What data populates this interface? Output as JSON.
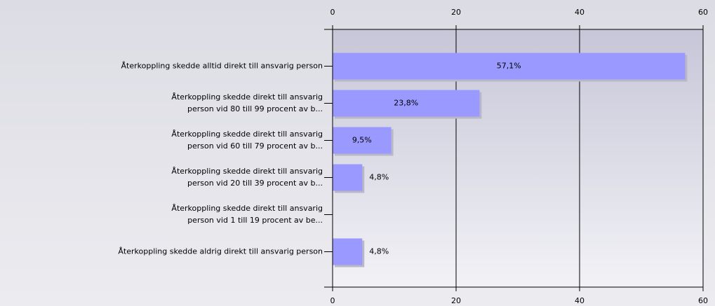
{
  "chart_data": {
    "type": "bar",
    "orientation": "horizontal",
    "categories": [
      [
        "Återkoppling skedde alltid direkt till ansvarig person"
      ],
      [
        "Återkoppling skedde direkt till ansvarig",
        "person vid 80 till 99 procent av b..."
      ],
      [
        "Återkoppling skedde direkt till ansvarig",
        "person vid 60 till 79 procent av b..."
      ],
      [
        "Återkoppling skedde direkt till ansvarig",
        "person vid 20 till 39 procent av b..."
      ],
      [
        "Återkoppling skedde direkt till ansvarig",
        "person vid 1 till 19 procent av be..."
      ],
      [
        "Återkoppling skedde aldrig direkt till ansvarig person"
      ]
    ],
    "values": [
      57.1,
      23.8,
      9.5,
      4.8,
      0,
      4.8
    ],
    "value_labels": [
      "57,1%",
      "23,8%",
      "9,5%",
      "4,8%",
      null,
      "4,8%"
    ],
    "color": "#9999ff",
    "xlim": [
      0,
      60
    ],
    "xticks": [
      0,
      20,
      40,
      60
    ],
    "grid": true
  }
}
